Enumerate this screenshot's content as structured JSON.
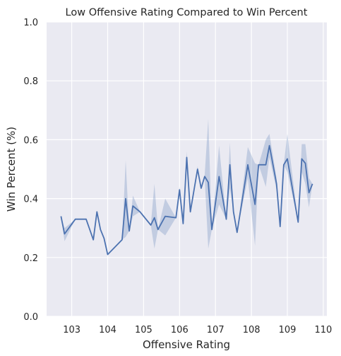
{
  "chart_data": {
    "type": "line",
    "title": "Low Offensive Rating Compared to Win Percent",
    "xlabel": "Offensive Rating",
    "ylabel": "Win Percent (%)",
    "xlim": [
      102.3,
      110.1
    ],
    "ylim": [
      0.0,
      1.0
    ],
    "xticks": [
      103,
      104,
      105,
      106,
      107,
      108,
      109,
      110
    ],
    "yticks": [
      0.0,
      0.2,
      0.4,
      0.6,
      0.8,
      1.0
    ],
    "xtick_labels": [
      "103",
      "104",
      "105",
      "106",
      "107",
      "108",
      "109",
      "110"
    ],
    "ytick_labels": [
      "0.0",
      "0.2",
      "0.4",
      "0.6",
      "0.8",
      "1.0"
    ],
    "grid": true,
    "colors": {
      "background": "#eaeaf2",
      "grid": "#ffffff",
      "line": "#4c72b0",
      "band": "#4c72b0"
    },
    "series": [
      {
        "x": [
          102.7,
          102.8,
          103.1,
          103.4,
          103.6,
          103.7,
          103.8,
          103.9,
          104.0,
          104.4,
          104.5,
          104.6,
          104.7,
          104.9,
          105.2,
          105.3,
          105.4,
          105.6,
          105.9,
          106.0,
          106.1,
          106.2,
          106.3,
          106.5,
          106.6,
          106.7,
          106.8,
          106.9,
          107.1,
          107.3,
          107.4,
          107.5,
          107.6,
          107.9,
          108.1,
          108.2,
          108.4,
          108.5,
          108.7,
          108.8,
          108.9,
          109.0,
          109.3,
          109.4,
          109.5,
          109.6,
          109.7
        ],
        "y": [
          0.34,
          0.28,
          0.33,
          0.33,
          0.26,
          0.355,
          0.295,
          0.265,
          0.21,
          0.26,
          0.4,
          0.29,
          0.375,
          0.355,
          0.31,
          0.335,
          0.295,
          0.34,
          0.335,
          0.43,
          0.315,
          0.54,
          0.355,
          0.5,
          0.435,
          0.475,
          0.455,
          0.295,
          0.475,
          0.33,
          0.515,
          0.355,
          0.285,
          0.515,
          0.38,
          0.515,
          0.515,
          0.58,
          0.45,
          0.305,
          0.515,
          0.535,
          0.32,
          0.535,
          0.52,
          0.42,
          0.45
        ],
        "ci_lower": [
          0.34,
          0.255,
          0.33,
          0.33,
          0.26,
          0.355,
          0.295,
          0.265,
          0.21,
          0.26,
          0.27,
          0.29,
          0.34,
          0.355,
          0.31,
          0.23,
          0.295,
          0.275,
          0.335,
          0.42,
          0.315,
          0.52,
          0.355,
          0.49,
          0.435,
          0.47,
          0.23,
          0.295,
          0.38,
          0.33,
          0.435,
          0.355,
          0.285,
          0.47,
          0.24,
          0.515,
          0.44,
          0.54,
          0.43,
          0.305,
          0.515,
          0.49,
          0.32,
          0.49,
          0.45,
          0.37,
          0.45
        ],
        "ci_upper": [
          0.34,
          0.3,
          0.33,
          0.33,
          0.26,
          0.355,
          0.295,
          0.265,
          0.21,
          0.26,
          0.53,
          0.29,
          0.41,
          0.355,
          0.31,
          0.45,
          0.295,
          0.4,
          0.335,
          0.44,
          0.315,
          0.56,
          0.355,
          0.51,
          0.435,
          0.48,
          0.67,
          0.295,
          0.58,
          0.33,
          0.59,
          0.355,
          0.285,
          0.575,
          0.52,
          0.515,
          0.6,
          0.62,
          0.47,
          0.305,
          0.515,
          0.62,
          0.32,
          0.585,
          0.585,
          0.47,
          0.45
        ]
      }
    ]
  }
}
